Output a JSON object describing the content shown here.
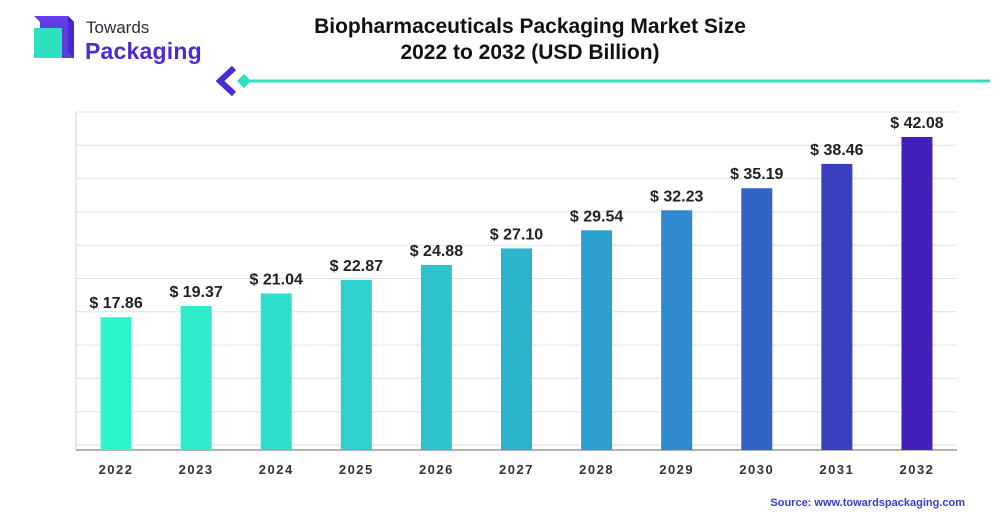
{
  "brand": {
    "name_top": "Towards",
    "name_bottom": "Packaging",
    "colors": {
      "purple": "#4b2bd6",
      "teal": "#2de0c0"
    }
  },
  "header": {
    "title_line1": "Biopharmaceuticals Packaging Market Size",
    "title_line2": "2022 to 2032 (USD Billion)"
  },
  "footer": {
    "source_label": "Source:",
    "source_url": "www.towardspackaging.com"
  },
  "chart_data": {
    "type": "bar",
    "categories": [
      "2022",
      "2023",
      "2024",
      "2025",
      "2026",
      "2027",
      "2028",
      "2029",
      "2030",
      "2031",
      "2032"
    ],
    "values": [
      17.86,
      19.37,
      21.04,
      22.87,
      24.88,
      27.1,
      29.54,
      32.23,
      35.19,
      38.46,
      42.08
    ],
    "data_labels": [
      "$ 17.86",
      "$ 19.37",
      "$ 21.04",
      "$ 22.87",
      "$ 24.88",
      "$ 27.10",
      "$ 29.54",
      "$ 32.23",
      "$ 35.19",
      "$ 38.46",
      "$ 42.08"
    ],
    "colors": [
      "#2ef5cd",
      "#2eebcc",
      "#2ee0cc",
      "#2dd2cc",
      "#2ec3cc",
      "#2cb4cc",
      "#2ea0d0",
      "#2f8ad0",
      "#3264c8",
      "#3a3fc0",
      "#4520b8"
    ],
    "grid": true,
    "legend": "none"
  }
}
